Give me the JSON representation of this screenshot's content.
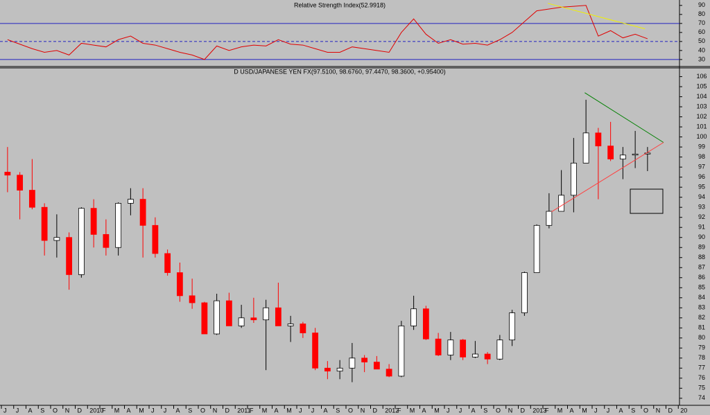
{
  "chart_data": [
    {
      "type": "line",
      "title": "Relative Strength Index(52.9918)",
      "series": [
        {
          "color": "#e00000",
          "values": [
            52,
            47,
            42,
            38,
            40,
            35,
            48,
            46,
            44,
            52,
            56,
            48,
            46,
            42,
            38,
            35,
            30,
            45,
            40,
            44,
            46,
            45,
            52,
            47,
            46,
            42,
            38,
            38,
            44,
            42,
            40,
            38,
            60,
            75,
            58,
            48,
            52,
            47,
            48,
            46,
            52,
            60,
            72,
            84,
            86,
            88,
            89,
            90,
            56,
            62,
            54,
            58,
            53,
            null,
            null,
            null
          ]
        }
      ],
      "ylim": [
        23,
        96
      ],
      "yticks": [
        30,
        40,
        50,
        60,
        70,
        80,
        90
      ],
      "reference_lines": [
        {
          "value": 70,
          "style": "solid",
          "color": "#2020c0"
        },
        {
          "value": 50,
          "style": "dashed",
          "color": "#2020c0"
        },
        {
          "value": 30,
          "style": "solid",
          "color": "#2020c0"
        }
      ],
      "trendlines": [
        {
          "color": "#f0f000",
          "x": [
            43.9,
            51.8
          ],
          "y": [
            92.3,
            64
          ]
        }
      ]
    },
    {
      "type": "candlestick",
      "title": "D USD/JAPANESE YEN FX(97.5100, 98.6760, 97.4470, 98.3600, +0.95400)",
      "categories": [
        "J",
        "J",
        "A",
        "S",
        "O",
        "N",
        "D",
        "2010",
        "F",
        "M",
        "A",
        "M",
        "J",
        "J",
        "A",
        "S",
        "O",
        "N",
        "D",
        "2011",
        "F",
        "M",
        "A",
        "M",
        "J",
        "J",
        "A",
        "S",
        "O",
        "N",
        "D",
        "2012",
        "F",
        "M",
        "A",
        "M",
        "J",
        "J",
        "A",
        "S",
        "O",
        "N",
        "D",
        "2013",
        "F",
        "M",
        "A",
        "M",
        "J",
        "J",
        "A",
        "S",
        "O",
        "N",
        "D",
        "20"
      ],
      "open": [
        96.5,
        96.2,
        94.7,
        93.0,
        89.7,
        90.0,
        86.3,
        92.9,
        90.3,
        89.0,
        93.4,
        93.8,
        91.2,
        88.4,
        86.5,
        84.2,
        83.5,
        80.4,
        83.7,
        81.2,
        82.0,
        81.8,
        83.0,
        81.2,
        81.4,
        80.5,
        77.0,
        76.7,
        77.0,
        78.0,
        77.6,
        76.9,
        76.2,
        81.2,
        82.9,
        79.9,
        78.3,
        79.8,
        78.1,
        78.4,
        77.9,
        79.8,
        82.5,
        86.5,
        91.2,
        92.6,
        94.2,
        97.4,
        100.4,
        99.1,
        97.8,
        98.2,
        98.3,
        null,
        null,
        null
      ],
      "high": [
        99.0,
        96.5,
        97.8,
        93.4,
        92.3,
        90.5,
        93.0,
        93.8,
        91.8,
        93.5,
        94.9,
        94.9,
        92.0,
        88.8,
        87.5,
        85.9,
        83.6,
        84.4,
        84.5,
        83.3,
        84.0,
        83.8,
        85.5,
        82.2,
        81.6,
        81.0,
        77.7,
        77.8,
        79.5,
        78.3,
        78.2,
        77.4,
        81.7,
        84.2,
        83.2,
        80.5,
        80.6,
        79.9,
        79.7,
        78.6,
        80.3,
        82.8,
        86.6,
        91.3,
        94.4,
        96.7,
        99.9,
        103.7,
        100.9,
        101.5,
        99.0,
        100.6,
        99.0,
        null,
        null,
        null
      ],
      "low": [
        94.5,
        91.8,
        92.8,
        88.2,
        88.0,
        84.8,
        86.0,
        89.0,
        88.2,
        88.2,
        92.2,
        88.0,
        88.0,
        86.2,
        83.6,
        82.9,
        80.4,
        80.3,
        81.2,
        81.0,
        81.5,
        76.8,
        81.5,
        79.6,
        80.0,
        76.8,
        75.9,
        75.9,
        75.6,
        76.6,
        76.9,
        76.1,
        76.1,
        80.8,
        79.8,
        78.2,
        77.8,
        77.8,
        78.0,
        77.4,
        77.8,
        79.2,
        82.2,
        86.5,
        90.9,
        92.6,
        92.5,
        97.4,
        93.8,
        97.6,
        95.8,
        96.9,
        96.6,
        null,
        null,
        null
      ],
      "close": [
        96.2,
        94.7,
        93.0,
        89.7,
        90.0,
        86.3,
        92.9,
        90.3,
        89.0,
        93.4,
        93.8,
        91.2,
        88.4,
        86.5,
        84.2,
        83.5,
        80.4,
        83.7,
        81.2,
        82.0,
        81.8,
        83.0,
        81.2,
        81.4,
        80.5,
        77.0,
        76.7,
        77.0,
        78.0,
        77.6,
        76.9,
        76.2,
        81.2,
        82.9,
        79.9,
        78.3,
        79.8,
        78.1,
        78.4,
        77.9,
        79.8,
        82.5,
        86.5,
        91.2,
        92.6,
        94.2,
        97.4,
        100.4,
        99.1,
        97.8,
        98.2,
        98.3,
        98.4,
        null,
        null,
        null
      ],
      "up_color": "#ffffff",
      "down_color": "#ff0000",
      "ylim": [
        73.3,
        106.8
      ],
      "yticks": [
        74,
        75,
        76,
        77,
        78,
        79,
        80,
        81,
        82,
        83,
        84,
        85,
        86,
        87,
        88,
        89,
        90,
        91,
        92,
        93,
        94,
        95,
        96,
        97,
        98,
        99,
        100,
        101,
        102,
        103,
        104,
        105,
        106
      ],
      "trendlines": [
        {
          "color": "#008000",
          "x": [
            46.9,
            53.3
          ],
          "y": [
            104.4,
            99.45
          ]
        },
        {
          "color": "#ff4040",
          "x": [
            44.2,
            53.3
          ],
          "y": [
            92.55,
            99.45
          ]
        }
      ]
    }
  ]
}
